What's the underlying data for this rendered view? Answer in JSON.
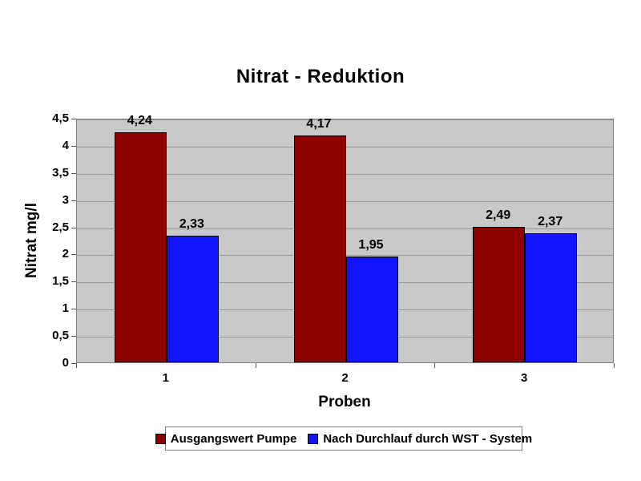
{
  "chart_data": {
    "type": "bar",
    "title": "Nitrat - Reduktion",
    "xlabel": "Proben",
    "ylabel": "Nitrat mg/l",
    "categories": [
      "1",
      "2",
      "3"
    ],
    "series": [
      {
        "name": "Ausgangswert Pumpe",
        "color": "#8C0000",
        "values": [
          4.24,
          4.17,
          2.49
        ],
        "labels": [
          "4,24",
          "4,17",
          "2,49"
        ]
      },
      {
        "name": "Nach Durchlauf durch WST - System",
        "color": "#1414FF",
        "values": [
          2.33,
          1.95,
          2.37
        ],
        "labels": [
          "2,33",
          "1,95",
          "2,37"
        ]
      }
    ],
    "ylim": [
      0,
      4.5
    ],
    "ytick_step": 0.5,
    "ytick_labels": [
      "0",
      "0,5",
      "1",
      "1,5",
      "2",
      "2,5",
      "3",
      "3,5",
      "4",
      "4,5"
    ],
    "grid": true,
    "legend_position": "bottom",
    "plot_bg": "#C9C9C9",
    "gridline_color": "#989898"
  }
}
